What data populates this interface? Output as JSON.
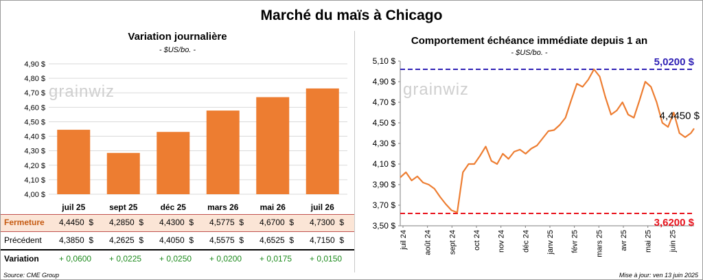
{
  "title": "Marché du maïs à Chicago",
  "left_panel": {
    "title": "Variation journalière",
    "unit": "- $US/bo. -",
    "watermark": "grainwiz",
    "table": {
      "rows": [
        {
          "label": "Fermeture",
          "values": [
            "4,4450  $",
            "4,2850  $",
            "4,4300  $",
            "4,5775  $",
            "4,6700  $",
            "4,7300  $"
          ]
        },
        {
          "label": "Précédent",
          "values": [
            "4,3850  $",
            "4,2625  $",
            "4,4050  $",
            "4,5575  $",
            "4,6525  $",
            "4,7150  $"
          ]
        },
        {
          "label": "Variation",
          "values": [
            "+ 0,0600",
            "+ 0,0225",
            "+ 0,0250",
            "+ 0,0200",
            "+ 0,0175",
            "+ 0,0150"
          ]
        }
      ]
    },
    "source": "Source: CME Group"
  },
  "right_panel": {
    "title": "Comportement échéance immédiate depuis 1 an",
    "unit": "- $US/bo. -",
    "watermark": "grainwiz",
    "high_label": "5,0200 $",
    "low_label": "3,6200 $",
    "last_label": "4,4450 $",
    "updated": "Mise à jour: ven 13 juin 2025"
  },
  "colors": {
    "bar": "#ed7d31",
    "line": "#ed7d31",
    "high": "#2e1fb5",
    "low": "#e8101a",
    "up": "#1b8a1b",
    "highlight_row": "#fbe5d6"
  },
  "chart_data": [
    {
      "type": "bar",
      "categories": [
        "juil 25",
        "sept 25",
        "déc 25",
        "mars 26",
        "mai 26",
        "juil 26"
      ],
      "values": [
        4.445,
        4.285,
        4.43,
        4.5775,
        4.67,
        4.73
      ],
      "title": "Variation journalière",
      "ylabel": "$US/bo.",
      "ylim": [
        4.0,
        4.9
      ],
      "yticks": [
        "4,00 $",
        "4,10 $",
        "4,20 $",
        "4,30 $",
        "4,40 $",
        "4,50 $",
        "4,60 $",
        "4,70 $",
        "4,80 $",
        "4,90 $"
      ],
      "grid": true
    },
    {
      "type": "line",
      "title": "Comportement échéance immédiate depuis 1 an",
      "ylabel": "$US/bo.",
      "ylim": [
        3.5,
        5.1
      ],
      "yticks": [
        "3,50 $",
        "3,70 $",
        "3,90 $",
        "4,10 $",
        "4,30 $",
        "4,50 $",
        "4,70 $",
        "4,90 $",
        "5,10 $"
      ],
      "xticks": [
        "juil 24",
        "août 24",
        "sept 24",
        "oct 24",
        "nov 24",
        "déc 24",
        "janv 25",
        "févr 25",
        "mars 25",
        "avr 25",
        "mai 25",
        "juin 25"
      ],
      "x": [
        "2024-06-17",
        "2024-06-24",
        "2024-07-01",
        "2024-07-08",
        "2024-07-15",
        "2024-07-22",
        "2024-07-29",
        "2024-08-05",
        "2024-08-12",
        "2024-08-19",
        "2024-08-26",
        "2024-09-02",
        "2024-09-09",
        "2024-09-16",
        "2024-09-23",
        "2024-09-30",
        "2024-10-07",
        "2024-10-14",
        "2024-10-21",
        "2024-10-28",
        "2024-11-04",
        "2024-11-11",
        "2024-11-18",
        "2024-11-25",
        "2024-12-02",
        "2024-12-09",
        "2024-12-16",
        "2024-12-23",
        "2024-12-30",
        "2025-01-06",
        "2025-01-13",
        "2025-01-20",
        "2025-01-27",
        "2025-02-03",
        "2025-02-10",
        "2025-02-17",
        "2025-02-24",
        "2025-03-03",
        "2025-03-10",
        "2025-03-17",
        "2025-03-24",
        "2025-03-31",
        "2025-04-07",
        "2025-04-14",
        "2025-04-21",
        "2025-04-28",
        "2025-05-05",
        "2025-05-12",
        "2025-05-19",
        "2025-05-26",
        "2025-06-02",
        "2025-06-09",
        "2025-06-13"
      ],
      "y": [
        3.97,
        4.02,
        3.94,
        3.98,
        3.92,
        3.9,
        3.86,
        3.78,
        3.71,
        3.65,
        3.63,
        4.02,
        4.1,
        4.1,
        4.18,
        4.27,
        4.13,
        4.1,
        4.2,
        4.15,
        4.22,
        4.24,
        4.2,
        4.25,
        4.28,
        4.35,
        4.42,
        4.43,
        4.48,
        4.55,
        4.72,
        4.88,
        4.85,
        4.92,
        5.02,
        4.95,
        4.75,
        4.58,
        4.62,
        4.7,
        4.58,
        4.55,
        4.72,
        4.9,
        4.85,
        4.7,
        4.5,
        4.46,
        4.6,
        4.4,
        4.36,
        4.4,
        4.445
      ],
      "reference_lines": [
        {
          "label": "5,0200 $",
          "value": 5.02
        },
        {
          "label": "3,6200 $",
          "value": 3.62
        }
      ],
      "last_value_label": "4,4450 $",
      "grid": false
    }
  ]
}
